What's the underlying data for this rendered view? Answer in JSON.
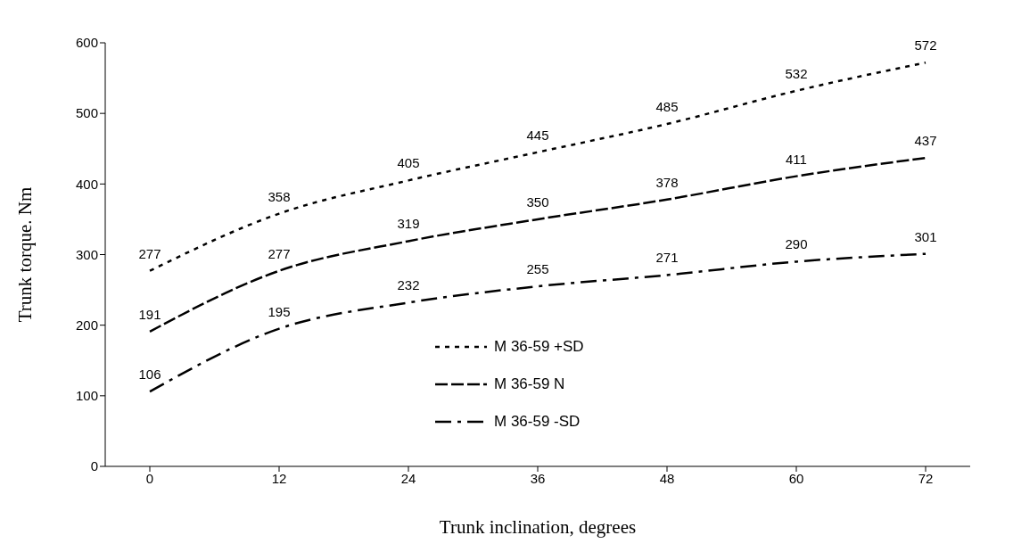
{
  "chart_data": {
    "type": "line",
    "xlabel": "Trunk inclination, degrees",
    "ylabel": "Trunk torque. Nm",
    "categories": [
      "0",
      "12",
      "24",
      "36",
      "48",
      "60",
      "72"
    ],
    "series": [
      {
        "name": "M 36-59 +SD",
        "color": "#000000",
        "line_style": "dotted",
        "values": [
          277,
          358,
          405,
          445,
          485,
          532,
          572
        ]
      },
      {
        "name": "M 36-59 N",
        "color": "#000000",
        "line_style": "dashed",
        "values": [
          191,
          277,
          319,
          350,
          378,
          411,
          437
        ]
      },
      {
        "name": "M 36-59 -SD",
        "color": "#000000",
        "line_style": "dashdot",
        "values": [
          106,
          195,
          232,
          255,
          271,
          290,
          301
        ]
      }
    ],
    "ylim": [
      0,
      600
    ],
    "yticks": [
      0,
      100,
      200,
      300,
      400,
      500,
      600
    ],
    "grid": false,
    "legend": "bottom",
    "marker": "none",
    "data_labels": true
  }
}
